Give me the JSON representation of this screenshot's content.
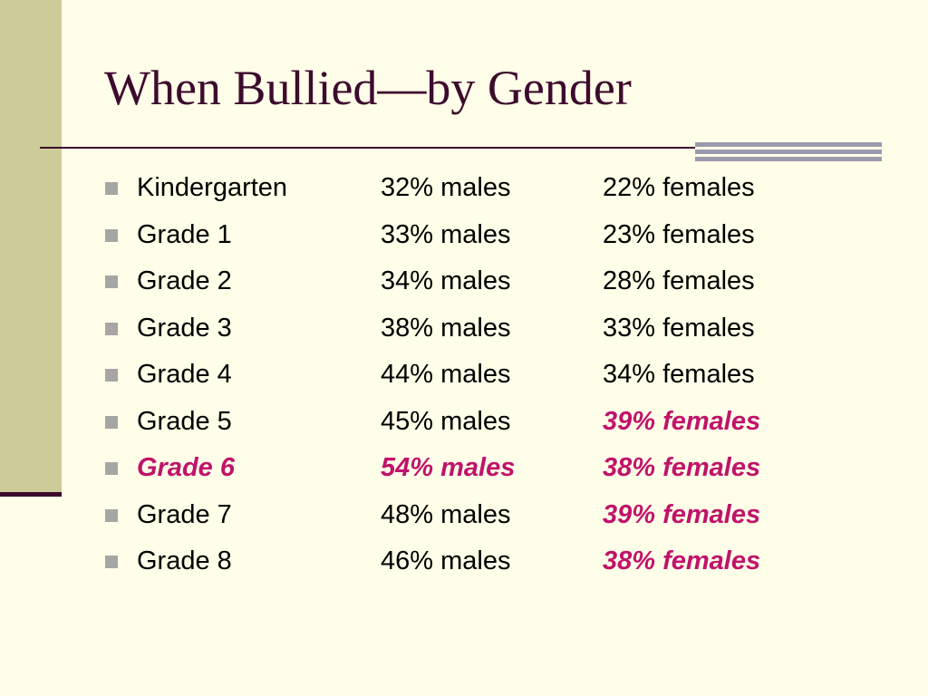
{
  "slide": {
    "title": "When Bullied—by Gender",
    "accent_color": "#c0136a",
    "title_color": "#3d0b2e",
    "background": "#fffee8",
    "rows": [
      {
        "grade": "Kindergarten",
        "males": "32% males",
        "females": "22% females",
        "grade_highlight": false,
        "males_highlight": false,
        "females_highlight": false
      },
      {
        "grade": "Grade 1",
        "males": "33% males",
        "females": "23% females",
        "grade_highlight": false,
        "males_highlight": false,
        "females_highlight": false
      },
      {
        "grade": "Grade 2",
        "males": "34% males",
        "females": "28% females",
        "grade_highlight": false,
        "males_highlight": false,
        "females_highlight": false
      },
      {
        "grade": "Grade 3",
        "males": "38% males",
        "females": "33% females",
        "grade_highlight": false,
        "males_highlight": false,
        "females_highlight": false
      },
      {
        "grade": "Grade 4",
        "males": "44% males",
        "females": "34% females",
        "grade_highlight": false,
        "males_highlight": false,
        "females_highlight": false
      },
      {
        "grade": "Grade 5",
        "males": "45% males",
        "females": "39% females",
        "grade_highlight": false,
        "males_highlight": false,
        "females_highlight": true
      },
      {
        "grade": "Grade 6",
        "males": "54% males",
        "females": "38% females",
        "grade_highlight": true,
        "males_highlight": true,
        "females_highlight": true
      },
      {
        "grade": "Grade 7",
        "males": "48% males",
        "females": "39% females",
        "grade_highlight": false,
        "males_highlight": false,
        "females_highlight": true
      },
      {
        "grade": "Grade 8",
        "males": "46% males",
        "females": "38% females",
        "grade_highlight": false,
        "males_highlight": false,
        "females_highlight": true
      }
    ]
  }
}
